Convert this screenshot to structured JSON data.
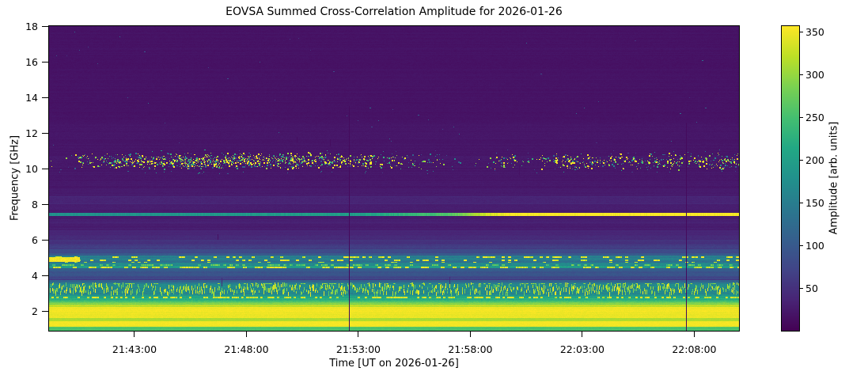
{
  "figure": {
    "title": "EOVSA Summed Cross-Correlation Amplitude for 2026-01-26",
    "xlabel": "Time [UT on 2026-01-26]",
    "ylabel": "Frequency [GHz]",
    "colorbar_label": "Amplitude [arb. units]"
  },
  "layout_colors": {
    "background": "#ffffff",
    "text": "#000000",
    "axis": "#000000"
  },
  "chart_data": {
    "type": "heatmap",
    "title": "EOVSA Summed Cross-Correlation Amplitude for 2026-01-26",
    "xlabel": "Time [UT on 2026-01-26]",
    "ylabel": "Frequency [GHz]",
    "colormap_name": "viridis",
    "x_ticks": [
      "21:43:00",
      "21:48:00",
      "21:53:00",
      "21:58:00",
      "22:03:00",
      "22:08:00"
    ],
    "y_ticks": [
      2,
      4,
      6,
      8,
      10,
      12,
      14,
      16,
      18
    ],
    "time_range": [
      "21:39:11",
      "22:10:00"
    ],
    "freq_range_ghz": [
      0.89,
      18.0
    ],
    "colorbar": {
      "label": "Amplitude [arb. units]",
      "ticks": [
        50,
        100,
        150,
        200,
        250,
        300,
        350
      ],
      "range": [
        0,
        357
      ]
    },
    "colormap_stops": [
      [
        0.0,
        "#440154"
      ],
      [
        0.1,
        "#482475"
      ],
      [
        0.2,
        "#414487"
      ],
      [
        0.3,
        "#355f8d"
      ],
      [
        0.4,
        "#2a788e"
      ],
      [
        0.5,
        "#21918c"
      ],
      [
        0.6,
        "#22a884"
      ],
      [
        0.7,
        "#44bf70"
      ],
      [
        0.8,
        "#7ad151"
      ],
      [
        0.9,
        "#bddf26"
      ],
      [
        1.0,
        "#fde725"
      ]
    ],
    "bands_format": "[freq_top_ghz, freq_bottom_ghz, amplitude, row_noise, pixel_noise]",
    "bands": [
      [
        18.0,
        12.6,
        18,
        2,
        2
      ],
      [
        12.6,
        10.7,
        21,
        2,
        2
      ],
      [
        10.7,
        10.05,
        24,
        2,
        3
      ],
      [
        10.05,
        8.85,
        23,
        3,
        2
      ],
      [
        8.85,
        8.45,
        27,
        3,
        2
      ],
      [
        8.45,
        8.0,
        36,
        4,
        3
      ],
      [
        8.0,
        7.72,
        30,
        3,
        2
      ],
      [
        7.72,
        7.4,
        27,
        3,
        2
      ],
      [
        7.4,
        7.15,
        27,
        3,
        2
      ],
      [
        7.15,
        6.95,
        33,
        3,
        2
      ],
      [
        6.95,
        6.55,
        29,
        3,
        2
      ],
      [
        6.55,
        6.28,
        36,
        3,
        2
      ],
      [
        6.28,
        6.0,
        43,
        4,
        3
      ],
      [
        6.0,
        5.72,
        51,
        4,
        3
      ],
      [
        5.72,
        5.45,
        63,
        5,
        4
      ],
      [
        5.45,
        5.25,
        79,
        5,
        4
      ],
      [
        5.25,
        5.1,
        96,
        6,
        5
      ],
      [
        5.1,
        4.97,
        146,
        8,
        8
      ],
      [
        4.97,
        4.83,
        156,
        8,
        8
      ],
      [
        4.83,
        4.7,
        133,
        8,
        8
      ],
      [
        4.7,
        4.55,
        168,
        8,
        10
      ],
      [
        4.55,
        4.42,
        192,
        8,
        12
      ],
      [
        4.42,
        4.22,
        108,
        6,
        5
      ],
      [
        4.22,
        3.97,
        94,
        5,
        5
      ],
      [
        3.97,
        3.8,
        74,
        5,
        4
      ],
      [
        3.8,
        3.73,
        56,
        3,
        3
      ],
      [
        3.73,
        3.6,
        118,
        6,
        6
      ],
      [
        3.6,
        3.52,
        148,
        6,
        6
      ],
      [
        3.52,
        2.95,
        166,
        8,
        12
      ],
      [
        2.95,
        2.84,
        188,
        8,
        10
      ],
      [
        2.84,
        2.73,
        206,
        8,
        10
      ],
      [
        2.73,
        2.6,
        221,
        8,
        8
      ],
      [
        2.6,
        2.47,
        249,
        8,
        8
      ],
      [
        2.47,
        2.34,
        286,
        8,
        8
      ],
      [
        2.34,
        2.22,
        323,
        6,
        6
      ],
      [
        2.22,
        1.58,
        349,
        5,
        4
      ],
      [
        1.58,
        1.43,
        313,
        5,
        4
      ],
      [
        1.43,
        1.1,
        351,
        4,
        3
      ],
      [
        1.1,
        0.89,
        257,
        6,
        4
      ]
    ],
    "bright_line": {
      "f_top": 7.49,
      "f_bot": 7.4,
      "profile": [
        [
          0,
          178
        ],
        [
          0.45,
          200
        ],
        [
          0.58,
          260
        ],
        [
          0.63,
          330
        ],
        [
          0.67,
          357
        ],
        [
          1,
          357
        ]
      ]
    },
    "dash_rows_format": "[freq_ghz, height_px, density, amplitude, segment_px]",
    "dash_rows": [
      [
        5.05,
        2,
        0.3,
        345,
        4
      ],
      [
        4.9,
        2,
        0.25,
        350,
        4
      ],
      [
        4.76,
        1,
        0.12,
        330,
        4
      ],
      [
        4.62,
        2,
        0.4,
        265,
        4
      ],
      [
        4.47,
        2,
        0.45,
        335,
        5
      ],
      [
        3.56,
        1,
        0.3,
        290,
        3
      ],
      [
        2.78,
        2,
        0.5,
        342,
        3
      ]
    ],
    "rfi_band": {
      "f_center": 10.42,
      "f_top": 10.7,
      "f_bot": 10.05,
      "density_profile": [
        [
          0,
          0.03
        ],
        [
          0.04,
          0.12
        ],
        [
          0.09,
          0.27
        ],
        [
          0.19,
          0.38
        ],
        [
          0.37,
          0.2
        ],
        [
          0.47,
          0.12
        ],
        [
          0.53,
          0.05
        ],
        [
          0.57,
          0.015
        ],
        [
          0.63,
          0.08
        ],
        [
          0.68,
          0.04
        ],
        [
          0.73,
          0.14
        ],
        [
          0.8,
          0.15
        ],
        [
          0.93,
          0.17
        ]
      ]
    },
    "grass_band": {
      "f_top": 3.58,
      "f_bot": 2.95,
      "density": 0.55,
      "amp_min": 265,
      "amp_max": 357
    },
    "scatter_layers": [
      {
        "f_top": 17.9,
        "f_bot": 11.0,
        "prob": 0.05,
        "amp_min": 35,
        "amp_max": 140
      },
      {
        "f_top": 10.05,
        "f_bot": 9.7,
        "prob": 0.05,
        "amp_min": 60,
        "amp_max": 230
      },
      {
        "f_top": 11.05,
        "f_bot": 10.7,
        "prob": 0.04,
        "amp_min": 60,
        "amp_max": 230
      }
    ],
    "left_blob": {
      "t0": "21:39:11",
      "t1": "21:40:32",
      "f_top": 5.03,
      "f_bot": 4.8,
      "amp": 352
    },
    "marks": [
      {
        "t": "21:46:43",
        "f_top": 6.3,
        "f_bot": 6.05,
        "amp": 14
      },
      {
        "t": "21:46:53",
        "f_top": 3.85,
        "f_bot": 3.42,
        "amp": 45
      },
      {
        "t": "21:57:04",
        "f_top": 3.9,
        "f_bot": 3.55,
        "amp": 45
      },
      {
        "t": "21:50:15",
        "f_top": 11.8,
        "f_bot": 11.5,
        "amp": 12
      },
      {
        "t": "21:51:44",
        "f_top": 11.65,
        "f_bot": 11.3,
        "amp": 12
      },
      {
        "t": "22:00:10",
        "f_top": 10.2,
        "f_bot": 9.7,
        "amp": 16
      }
    ],
    "vertical_lines": [
      {
        "t": "21:52:34",
        "f_top": 13.5,
        "f_bot": 0.89,
        "amp": 10
      },
      {
        "t": "22:07:37",
        "f_top": 12.6,
        "f_bot": 0.89,
        "amp": 10
      }
    ]
  }
}
